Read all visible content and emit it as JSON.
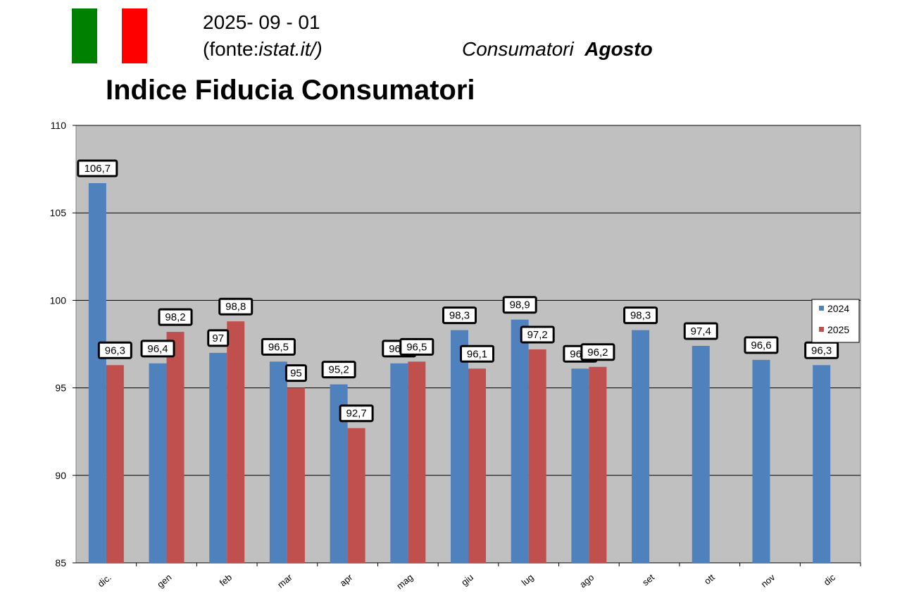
{
  "header": {
    "date": "2025- 09 - 01",
    "source_prefix": "(fonte:",
    "source_site": "istat.it/",
    "source_suffix": ")",
    "subtitle_1": "Consumatori",
    "subtitle_2": "Agosto",
    "flag_colors": [
      "#008000",
      "#ffffff",
      "#ff0000"
    ]
  },
  "chart_data": {
    "type": "bar",
    "title": "Indice Fiducia Consumatori",
    "xlabel": "",
    "ylabel": "",
    "ylim": [
      85,
      110
    ],
    "yticks": [
      85,
      90,
      95,
      100,
      105,
      110
    ],
    "grid": true,
    "legend": "right",
    "categories": [
      "dic.",
      "gen",
      "feb",
      "mar",
      "apr",
      "mag",
      "giu",
      "lug",
      "ago",
      "set",
      "ott",
      "nov",
      "dic"
    ],
    "series": [
      {
        "name": "2024",
        "color": "#4f81bd",
        "values": [
          106.7,
          96.4,
          97,
          96.5,
          95.2,
          96.4,
          98.3,
          98.9,
          96.1,
          98.3,
          97.4,
          96.6,
          96.3
        ]
      },
      {
        "name": "2025",
        "color": "#c0504d",
        "values": [
          96.3,
          98.2,
          98.8,
          95,
          92.7,
          96.5,
          96.1,
          97.2,
          96.2,
          null,
          null,
          null,
          null
        ]
      }
    ],
    "plot_background": "#c0c0c0"
  }
}
